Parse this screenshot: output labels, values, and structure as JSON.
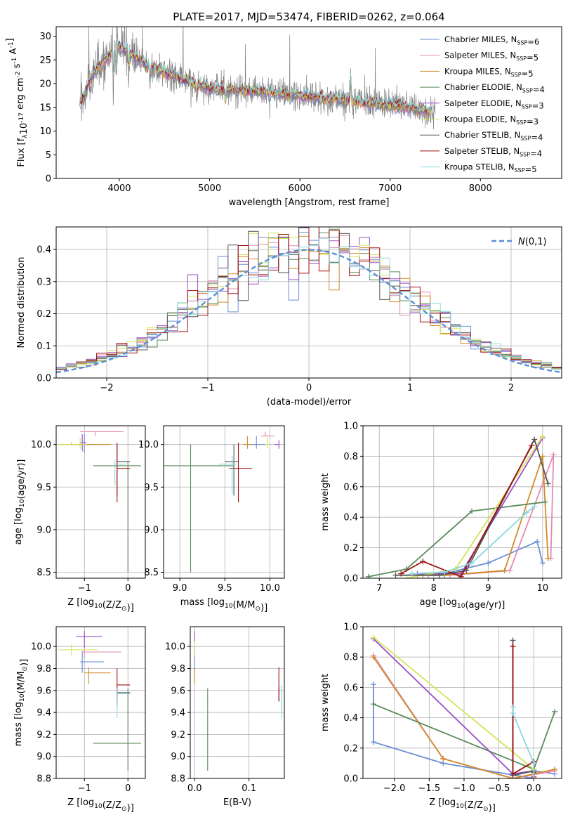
{
  "figure_title": "PLATE=2017, MJD=53474, FIBERID=0262, z=0.064",
  "palette": [
    "#6a8fd6",
    "#e58ab5",
    "#d18a2a",
    "#5a8a5a",
    "#9b4fc8",
    "#d4e35a",
    "#555555",
    "#a01010",
    "#8ad8e0"
  ],
  "series_names": [
    "Chabrier MILES, N$_{SSP}$=6",
    "Salpeter MILES, N$_{SSP}$=5",
    "Kroupa MILES, N$_{SSP}$=5",
    "Chabrier ELODIE, N$_{SSP}$=4",
    "Salpeter ELODIE, N$_{SSP}$=3",
    "Kroupa ELODIE, N$_{SSP}$=3",
    "Chabrier STELIB, N$_{SSP}$=4",
    "Salpeter STELIB, N$_{SSP}$=4",
    "Kroupa STELIB, N$_{SSP}$=5"
  ],
  "chart_data": [
    {
      "id": "spectrum",
      "type": "line",
      "title": "PLATE=2017, MJD=53474, FIBERID=0262, z=0.064",
      "xlabel": "wavelength [Angstrom, rest frame]",
      "ylabel": "Flux [f$_\\lambda$10$^{-17}$ erg cm$^{-2}$ s$^{-1}$ A$^{-1}$]",
      "xlim": [
        3300,
        8900
      ],
      "ylim": [
        0,
        32
      ],
      "xticks": [
        4000,
        5000,
        6000,
        7000,
        8000
      ],
      "yticks": [
        0,
        5,
        10,
        15,
        20,
        25,
        30
      ],
      "grid": false,
      "legend": "top-right",
      "continuum_knots": {
        "x": [
          3570,
          3700,
          3850,
          4000,
          4300,
          4700,
          5000,
          5500,
          6000,
          6500,
          7000,
          7500
        ],
        "y": [
          16,
          22,
          25,
          28,
          24,
          21,
          19,
          18.5,
          17.5,
          16.5,
          15.5,
          14
        ]
      }
    },
    {
      "id": "residuals",
      "type": "step",
      "xlabel": "(data-model)/error",
      "ylabel": "Normed distribution",
      "xlim": [
        -2.5,
        2.5
      ],
      "ylim": [
        0,
        0.47
      ],
      "xticks": [
        -2,
        -1,
        0,
        1,
        2
      ],
      "yticks": [
        0.0,
        0.1,
        0.2,
        0.3,
        0.4
      ],
      "grid": true,
      "legend": "top-right",
      "reference": {
        "name": "$\\mathcal{N}(0,1)$",
        "mean": 0,
        "sigma": 1,
        "color": "#5b8fd6"
      },
      "bin_width": 0.1
    },
    {
      "id": "age_vs_Z",
      "type": "errorbar",
      "xlabel": "Z [log$_{10}$(Z/Z$_\\odot$)]",
      "ylabel": "age  [log$_{10}$(age/yr)]",
      "xlim": [
        -1.65,
        0.4
      ],
      "ylim": [
        8.43,
        10.22
      ],
      "xticks": [
        -1,
        0
      ],
      "yticks": [
        8.5,
        9.0,
        9.5,
        10.0
      ],
      "grid": true,
      "points": [
        {
          "s": 0,
          "x": -1.0,
          "y": 10.0,
          "xl": 0.25,
          "xh": 0.3,
          "yl": 0.1,
          "yh": 0.12
        },
        {
          "s": 1,
          "x": -0.75,
          "y": 10.15,
          "xl": 0.35,
          "xh": 0.65,
          "yl": 0.05,
          "yh": 0.0
        },
        {
          "s": 2,
          "x": -1.3,
          "y": 10.0,
          "xl": 0.3,
          "xh": 0.9,
          "yl": 0.0,
          "yh": 0.02
        },
        {
          "s": 3,
          "x": 0.0,
          "y": 9.75,
          "xl": 0.8,
          "xh": 0.3,
          "yl": 1.25,
          "yh": 0.05
        },
        {
          "s": 4,
          "x": -1.05,
          "y": 10.02,
          "xl": 0.05,
          "xh": 0.1,
          "yl": 0.1,
          "yh": 0.1
        },
        {
          "s": 5,
          "x": -1.1,
          "y": 10.0,
          "xl": 0.5,
          "xh": 0.15,
          "yl": 0.05,
          "yh": 0.08
        },
        {
          "s": 6,
          "x": -0.25,
          "y": 9.8,
          "xl": 0.0,
          "xh": 0.3,
          "yl": 0.4,
          "yh": 0.2
        },
        {
          "s": 7,
          "x": -0.25,
          "y": 9.72,
          "xl": 0.0,
          "xh": 0.3,
          "yl": 0.4,
          "yh": 0.3
        },
        {
          "s": 8,
          "x": -0.3,
          "y": 9.77,
          "xl": 0.0,
          "xh": 0.25,
          "yl": 0.25,
          "yh": 0.05
        }
      ]
    },
    {
      "id": "age_vs_mass",
      "type": "errorbar",
      "xlabel": "mass [log$_{10}$(M/M$_\\odot$)]",
      "ylabel": "",
      "xlim": [
        8.82,
        10.16
      ],
      "ylim": [
        8.43,
        10.22
      ],
      "xticks": [
        9.0,
        9.5,
        10.0
      ],
      "yticks": [
        8.5,
        9.0,
        9.5,
        10.0
      ],
      "grid": true,
      "points": [
        {
          "s": 0,
          "x": 9.85,
          "y": 10.0,
          "xl": 0.1,
          "xh": 0.1,
          "yl": 0.05,
          "yh": 0.1
        },
        {
          "s": 1,
          "x": 9.95,
          "y": 10.1,
          "xl": 0.05,
          "xh": 0.1,
          "yl": 0.0,
          "yh": 0.05
        },
        {
          "s": 2,
          "x": 9.75,
          "y": 10.0,
          "xl": 0.05,
          "xh": 0.05,
          "yl": 0.05,
          "yh": 0.1
        },
        {
          "s": 3,
          "x": 9.12,
          "y": 9.75,
          "xl": 0.3,
          "xh": 0.48,
          "yl": 1.25,
          "yh": 0.25
        },
        {
          "s": 4,
          "x": 10.1,
          "y": 10.0,
          "xl": 0.05,
          "xh": 0.0,
          "yl": 0.05,
          "yh": 0.05
        },
        {
          "s": 5,
          "x": 9.97,
          "y": 10.0,
          "xl": 0.02,
          "xh": 0.02,
          "yl": 0.05,
          "yh": 0.08
        },
        {
          "s": 6,
          "x": 9.6,
          "y": 9.8,
          "xl": 0.1,
          "xh": 0.05,
          "yl": 0.4,
          "yh": 0.2
        },
        {
          "s": 7,
          "x": 9.65,
          "y": 9.72,
          "xl": 0.1,
          "xh": 0.15,
          "yl": 0.4,
          "yh": 0.3
        },
        {
          "s": 8,
          "x": 9.58,
          "y": 9.77,
          "xl": 0.15,
          "xh": 0.05,
          "yl": 0.35,
          "yh": 0.1
        }
      ]
    },
    {
      "id": "weight_vs_age",
      "type": "line",
      "xlabel": "age  [log$_{10}$(age/yr)]",
      "ylabel": "mass weight",
      "xlim": [
        6.7,
        10.35
      ],
      "ylim": [
        0,
        1.0
      ],
      "xticks": [
        7,
        8,
        9,
        10
      ],
      "yticks": [
        0.0,
        0.2,
        0.4,
        0.6,
        0.8,
        1.0
      ],
      "grid": true,
      "lines": [
        {
          "s": 0,
          "x": [
            7.7,
            8.2,
            9.0,
            9.9,
            10.0
          ],
          "y": [
            0.02,
            0.03,
            0.1,
            0.24,
            0.1
          ]
        },
        {
          "s": 1,
          "x": [
            7.9,
            8.3,
            9.4,
            10.2,
            10.15
          ],
          "y": [
            0.02,
            0.02,
            0.05,
            0.81,
            0.13
          ]
        },
        {
          "s": 2,
          "x": [
            7.8,
            8.2,
            9.3,
            10.0,
            10.1
          ],
          "y": [
            0.02,
            0.02,
            0.05,
            0.8,
            0.13
          ]
        },
        {
          "s": 3,
          "x": [
            6.8,
            7.5,
            8.7,
            10.05
          ],
          "y": [
            0.01,
            0.06,
            0.44,
            0.5
          ]
        },
        {
          "s": 4,
          "x": [
            7.7,
            8.5,
            10.0
          ],
          "y": [
            0.03,
            0.03,
            0.92
          ]
        },
        {
          "s": 5,
          "x": [
            7.5,
            8.4,
            10.0
          ],
          "y": [
            0.0,
            0.06,
            0.93
          ]
        },
        {
          "s": 6,
          "x": [
            7.3,
            8.1,
            8.6,
            9.85,
            10.1
          ],
          "y": [
            0.02,
            0.02,
            0.05,
            0.91,
            0.62
          ]
        },
        {
          "s": 7,
          "x": [
            7.4,
            7.8,
            8.5,
            9.8
          ],
          "y": [
            0.03,
            0.11,
            0.01,
            0.87
          ]
        },
        {
          "s": 8,
          "x": [
            7.6,
            8.2,
            8.7,
            9.7,
            9.85
          ],
          "y": [
            0.03,
            0.04,
            0.1,
            0.43,
            0.47
          ]
        }
      ]
    },
    {
      "id": "mass_vs_Z",
      "type": "errorbar",
      "xlabel": "Z [log$_{10}$(Z/Z$_\\odot$)]",
      "ylabel": "mass [log$_{10}$(M/M$_\\odot$)]",
      "xlim": [
        -1.65,
        0.4
      ],
      "ylim": [
        8.8,
        10.18
      ],
      "xticks": [
        -1,
        0
      ],
      "yticks": [
        8.8,
        9.0,
        9.2,
        9.4,
        9.6,
        9.8,
        10.0
      ],
      "grid": true,
      "points": [
        {
          "s": 0,
          "x": -1.05,
          "y": 9.86,
          "xl": 0.05,
          "xh": 0.5,
          "yl": 0.1,
          "yh": 0.1
        },
        {
          "s": 1,
          "x": -1.0,
          "y": 9.95,
          "xl": 0.05,
          "xh": 0.85,
          "yl": 0.05,
          "yh": 0.05
        },
        {
          "s": 2,
          "x": -0.9,
          "y": 9.76,
          "xl": 0.1,
          "xh": 0.5,
          "yl": 0.1,
          "yh": 0.05
        },
        {
          "s": 3,
          "x": 0.0,
          "y": 9.12,
          "xl": 0.8,
          "xh": 0.3,
          "yl": 0.25,
          "yh": 0.5
        },
        {
          "s": 4,
          "x": -1.0,
          "y": 10.09,
          "xl": 0.2,
          "xh": 0.4,
          "yl": 0.1,
          "yh": 0.05
        },
        {
          "s": 5,
          "x": -1.3,
          "y": 9.97,
          "xl": 0.3,
          "xh": 0.6,
          "yl": 0.05,
          "yh": 0.05
        },
        {
          "s": 6,
          "x": -0.25,
          "y": 9.58,
          "xl": 0.0,
          "xh": 0.3,
          "yl": 0.12,
          "yh": 0.05
        },
        {
          "s": 7,
          "x": -0.25,
          "y": 9.65,
          "xl": 0.0,
          "xh": 0.3,
          "yl": 0.15,
          "yh": 0.15
        },
        {
          "s": 8,
          "x": -0.25,
          "y": 9.57,
          "xl": 0.0,
          "xh": 0.3,
          "yl": 0.22,
          "yh": 0.05
        }
      ]
    },
    {
      "id": "mass_vs_EBV",
      "type": "errorbar",
      "xlabel": "E(B-V)",
      "ylabel": "",
      "xlim": [
        -0.008,
        0.165
      ],
      "ylim": [
        8.8,
        10.18
      ],
      "xticks": [
        0.0,
        0.1
      ],
      "yticks": [
        8.8,
        9.0,
        9.2,
        9.4,
        9.6,
        9.8,
        10.0
      ],
      "grid": true,
      "points": [
        {
          "s": 0,
          "x": 0.0,
          "y": 9.86,
          "xl": 0.0,
          "xh": 0.0,
          "yl": 0.1,
          "yh": 0.1
        },
        {
          "s": 1,
          "x": 0.0,
          "y": 9.95,
          "xl": 0.0,
          "xh": 0.0,
          "yl": 0.05,
          "yh": 0.05
        },
        {
          "s": 2,
          "x": 0.0,
          "y": 9.76,
          "xl": 0.0,
          "xh": 0.0,
          "yl": 0.1,
          "yh": 0.05
        },
        {
          "s": 3,
          "x": 0.024,
          "y": 9.12,
          "xl": 0.0,
          "xh": 0.0,
          "yl": 0.25,
          "yh": 0.5
        },
        {
          "s": 4,
          "x": 0.0,
          "y": 10.09,
          "xl": 0.0,
          "xh": 0.0,
          "yl": 0.05,
          "yh": 0.05
        },
        {
          "s": 5,
          "x": 0.0,
          "y": 9.97,
          "xl": 0.0,
          "xh": 0.0,
          "yl": 0.05,
          "yh": 0.08
        },
        {
          "s": 6,
          "x": 0.155,
          "y": 9.58,
          "xl": 0.0,
          "xh": 0.0,
          "yl": 0.08,
          "yh": 0.05
        },
        {
          "s": 7,
          "x": 0.155,
          "y": 9.65,
          "xl": 0.0,
          "xh": 0.0,
          "yl": 0.15,
          "yh": 0.16
        },
        {
          "s": 8,
          "x": 0.16,
          "y": 9.5,
          "xl": 0.0,
          "xh": 0.0,
          "yl": 0.15,
          "yh": 0.15
        }
      ]
    },
    {
      "id": "weight_vs_Z",
      "type": "line",
      "xlabel": "Z [log$_{10}$(Z/Z$_\\odot$)]",
      "ylabel": "mass weight",
      "xlim": [
        -2.45,
        0.4
      ],
      "ylim": [
        0,
        1.0
      ],
      "xticks": [
        -2.0,
        -1.5,
        -1.0,
        -0.5,
        0.0
      ],
      "yticks": [
        0.0,
        0.2,
        0.4,
        0.6,
        0.8,
        1.0
      ],
      "grid": true,
      "lines": [
        {
          "s": 0,
          "x": [
            -2.3,
            -2.3,
            -1.3,
            0.0,
            0.0,
            0.3
          ],
          "y": [
            0.62,
            0.24,
            0.1,
            0.0,
            0.05,
            0.03
          ]
        },
        {
          "s": 1,
          "x": [
            -2.3,
            -1.3,
            -0.3,
            0.3
          ],
          "y": [
            0.81,
            0.13,
            0.0,
            0.05
          ]
        },
        {
          "s": 2,
          "x": [
            -2.3,
            -1.3,
            -0.3,
            0.3
          ],
          "y": [
            0.8,
            0.13,
            0.0,
            0.06
          ]
        },
        {
          "s": 3,
          "x": [
            -2.3,
            0.0,
            0.3
          ],
          "y": [
            0.49,
            0.06,
            0.44
          ]
        },
        {
          "s": 4,
          "x": [
            -2.3,
            -0.3,
            0.0
          ],
          "y": [
            0.92,
            0.03,
            0.05
          ]
        },
        {
          "s": 5,
          "x": [
            -2.3,
            0.0
          ],
          "y": [
            0.93,
            0.06
          ]
        },
        {
          "s": 6,
          "x": [
            -0.3,
            -0.3,
            0.0,
            0.0
          ],
          "y": [
            0.91,
            0.02,
            0.05,
            0.04
          ]
        },
        {
          "s": 7,
          "x": [
            -0.3,
            -0.3,
            0.0,
            0.0
          ],
          "y": [
            0.87,
            0.03,
            0.11,
            0.01
          ]
        },
        {
          "s": 8,
          "x": [
            -0.3,
            -0.3,
            0.0,
            0.0
          ],
          "y": [
            0.47,
            0.43,
            0.1,
            0.0
          ]
        }
      ]
    }
  ]
}
